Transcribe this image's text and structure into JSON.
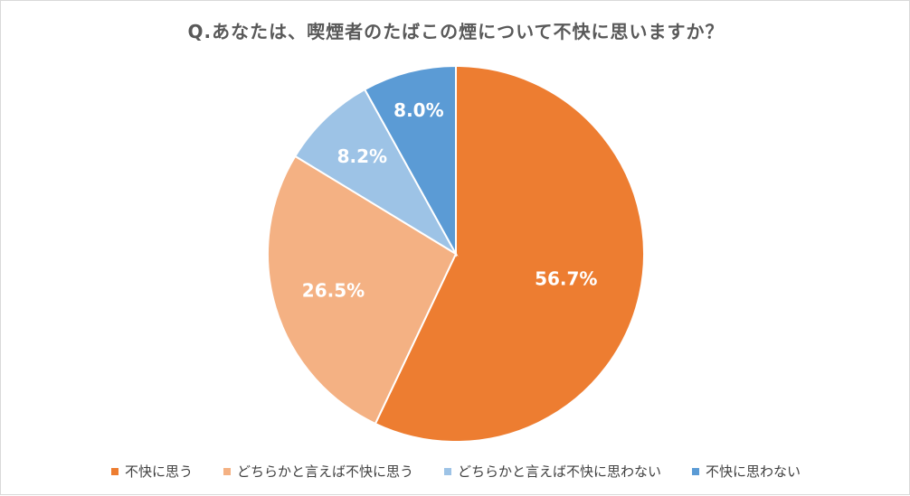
{
  "chart_data": {
    "type": "pie",
    "title": "Q.あなたは、喫煙者のたばこの煙について不快に思いますか？",
    "categories": [
      "不快に思う",
      "どちらかと言えば不快に思う",
      "どちらかと言えば不快に思わない",
      "不快に思わない"
    ],
    "values": [
      56.7,
      26.5,
      8.2,
      8.0
    ],
    "value_labels": [
      "56.7%",
      "26.5%",
      "8.2%",
      "8.0%"
    ],
    "colors": [
      "#ED7D31",
      "#F4B183",
      "#9DC3E6",
      "#5B9BD5"
    ],
    "start_angle": "12 o'clock",
    "direction": "clockwise",
    "legend_position": "bottom"
  }
}
